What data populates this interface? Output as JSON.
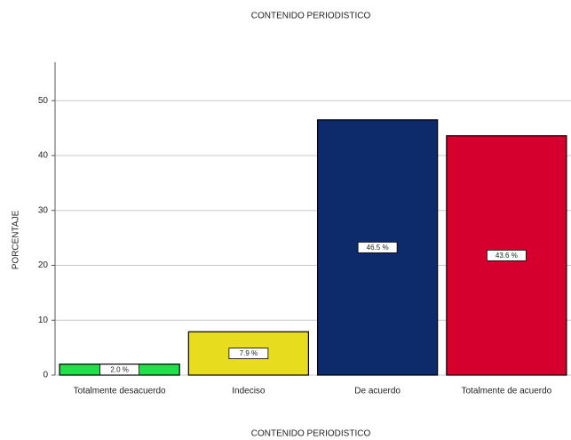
{
  "chart_data": {
    "type": "bar",
    "title": "CONTENIDO PERIODISTICO",
    "x_label": "CONTENIDO PERIODISTICO",
    "y_label": "PORCENTAJE",
    "categories": [
      "Totalmente desacuerdo",
      "Indeciso",
      "De acuerdo",
      "Totalmente de acuerdo"
    ],
    "values": [
      2.0,
      7.9,
      46.5,
      43.6
    ],
    "value_labels": [
      "2.0 %",
      "7.9 %",
      "46.5 %",
      "43.6 %"
    ],
    "colors": [
      "#22e04a",
      "#e8dc1e",
      "#0d2a6b",
      "#d6002f"
    ],
    "ylim": [
      0,
      57
    ],
    "yticks": [
      0,
      10,
      20,
      30,
      40,
      50
    ],
    "grid": true
  }
}
